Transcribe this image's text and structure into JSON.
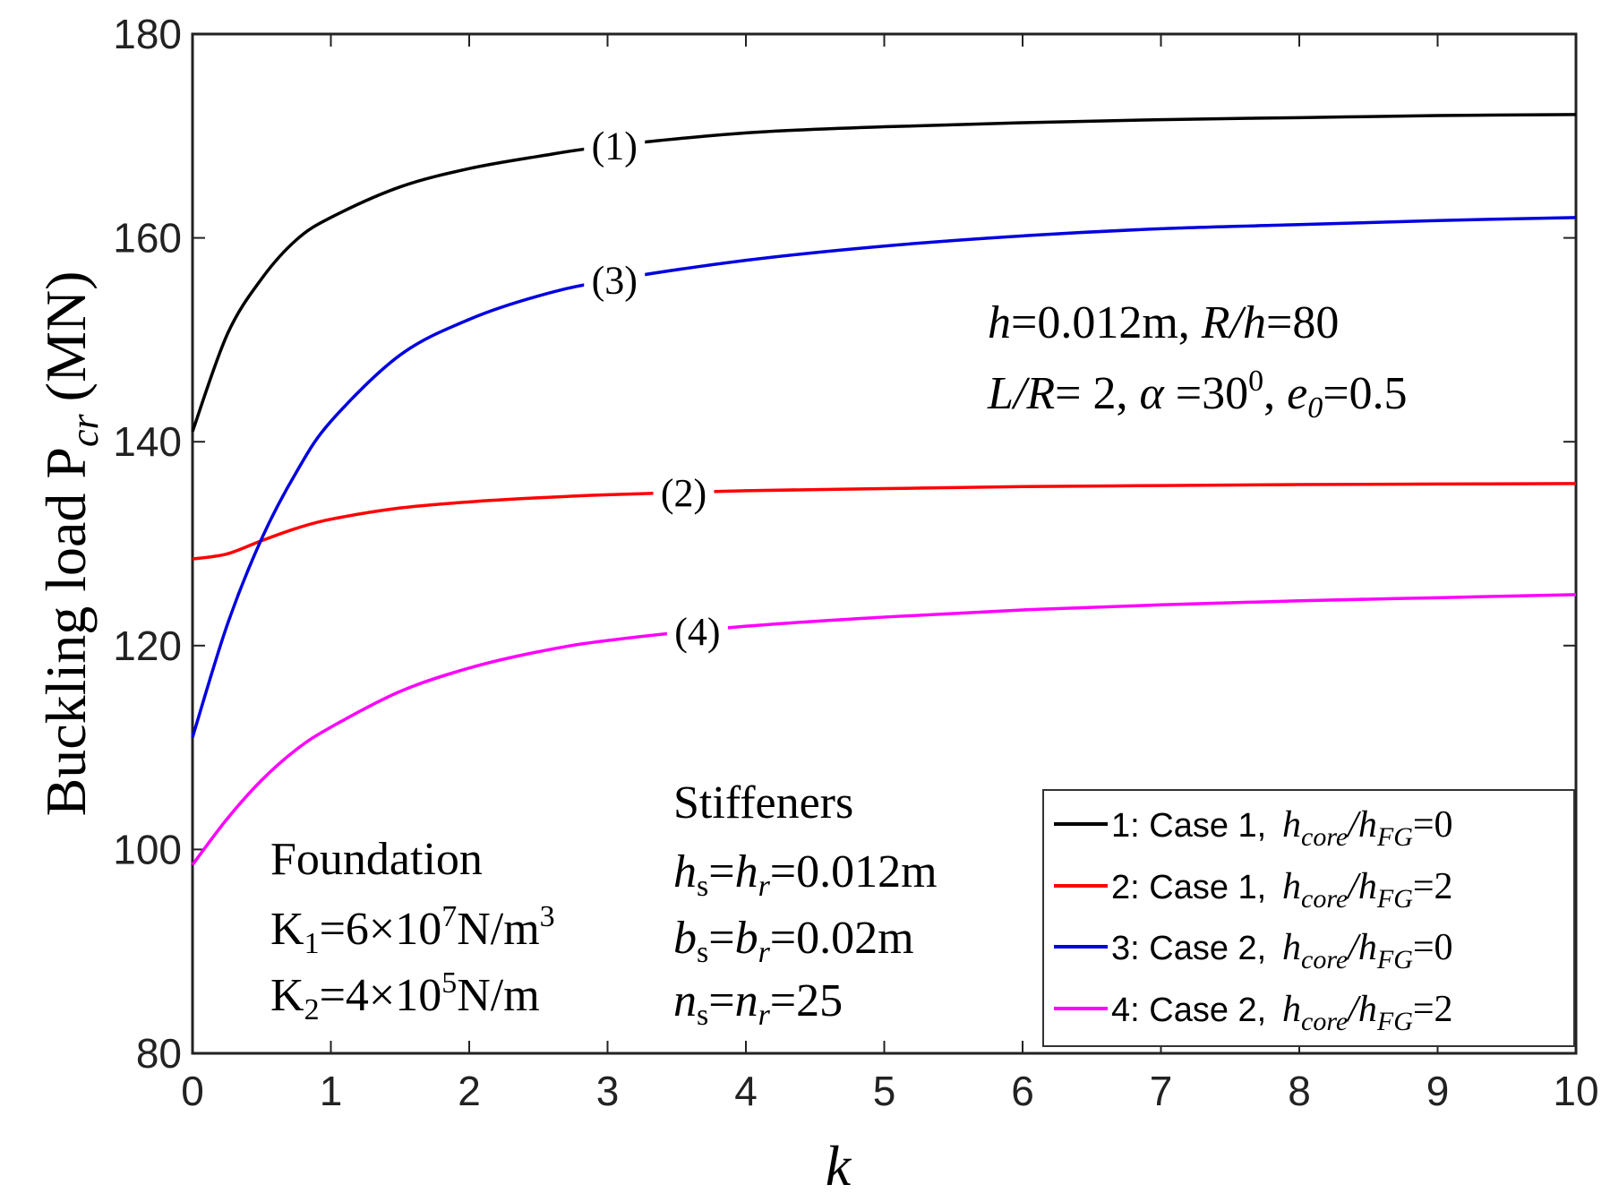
{
  "chart_data": {
    "type": "line",
    "xlabel": "k",
    "ylabel": "Buckling load P",
    "ylabel_sub": "cr",
    "ylabel_unit": "(MN)",
    "xlim": [
      0,
      10
    ],
    "ylim": [
      80,
      180
    ],
    "xticks": [
      0,
      1,
      2,
      3,
      4,
      5,
      6,
      7,
      8,
      9,
      10
    ],
    "yticks": [
      80,
      100,
      120,
      140,
      160,
      180
    ],
    "x": [
      0,
      0.25,
      0.5,
      0.75,
      1,
      1.5,
      2,
      2.5,
      3,
      4,
      5,
      6,
      7,
      8,
      9,
      10
    ],
    "series": [
      {
        "name": "1: Case 1,",
        "marker": "(1)",
        "color": "#000000",
        "label_at": 3.05,
        "values": [
          141,
          150.5,
          156,
          159.8,
          162,
          165,
          166.8,
          168,
          169,
          170.3,
          170.9,
          171.3,
          171.6,
          171.8,
          172,
          172.1
        ]
      },
      {
        "name": "2: Case 1,",
        "marker": "(2)",
        "color": "#ff0000",
        "label_at": 3.55,
        "values": [
          128.5,
          129,
          130.3,
          131.5,
          132.4,
          133.5,
          134.1,
          134.5,
          134.8,
          135.2,
          135.4,
          135.6,
          135.7,
          135.8,
          135.85,
          135.9
        ]
      },
      {
        "name": "3: Case 2,",
        "marker": "(3)",
        "color": "#0000e0",
        "label_at": 3.05,
        "values": [
          111,
          122,
          130.5,
          137,
          142,
          148.5,
          152,
          154.3,
          155.8,
          157.8,
          159.2,
          160.2,
          160.9,
          161.3,
          161.7,
          162
        ]
      },
      {
        "name": "4: Case 2,",
        "marker": "(4)",
        "color": "#ff00ff",
        "label_at": 3.65,
        "values": [
          98.5,
          103,
          106.8,
          109.8,
          112,
          115.5,
          117.8,
          119.4,
          120.5,
          121.9,
          122.8,
          123.5,
          124,
          124.4,
          124.7,
          125
        ]
      }
    ],
    "legend": {
      "position": "bottom-right",
      "ratio_prefix": "h",
      "ratio_num_sub": "core",
      "ratio_sep": "/h",
      "ratio_den_sub": "FG",
      "entries": [
        "=0",
        "=2",
        "=0",
        "=2"
      ]
    },
    "annotations": {
      "params_line1": {
        "h": "h",
        "v1": "=0.012m, ",
        "rh": "R/h",
        "v2": "=80"
      },
      "params_line2": {
        "lr": "L/R",
        "v1": "= 2, ",
        "alpha": "α",
        "v2": " =30",
        "deg": "0",
        "v3": ", ",
        "e": "e",
        "esub": "0",
        "v4": "=0.5"
      },
      "foundation": {
        "title": "Foundation",
        "k1_a": "K",
        "k1_sub": "1",
        "k1_b": "=6×10",
        "k1_exp": "7",
        "k1_c": "N/m",
        "k1_exp2": "3",
        "k2_a": "K",
        "k2_sub": "2",
        "k2_b": "=4×10",
        "k2_exp": "5",
        "k2_c": "N/m"
      },
      "stiffeners": {
        "title": "Stiffeners",
        "l1_a": "h",
        "l1_sa": "s",
        "l1_b": "=",
        "l1_c": "h",
        "l1_sc": "r",
        "l1_d": "=0.012m",
        "l2_a": "b",
        "l2_sa": "s",
        "l2_b": "=",
        "l2_c": "b",
        "l2_sc": "r",
        "l2_d": "=0.02m",
        "l3_a": "n",
        "l3_sa": "s",
        "l3_b": "=",
        "l3_c": "n",
        "l3_sc": "r",
        "l3_d": "=25"
      }
    }
  }
}
